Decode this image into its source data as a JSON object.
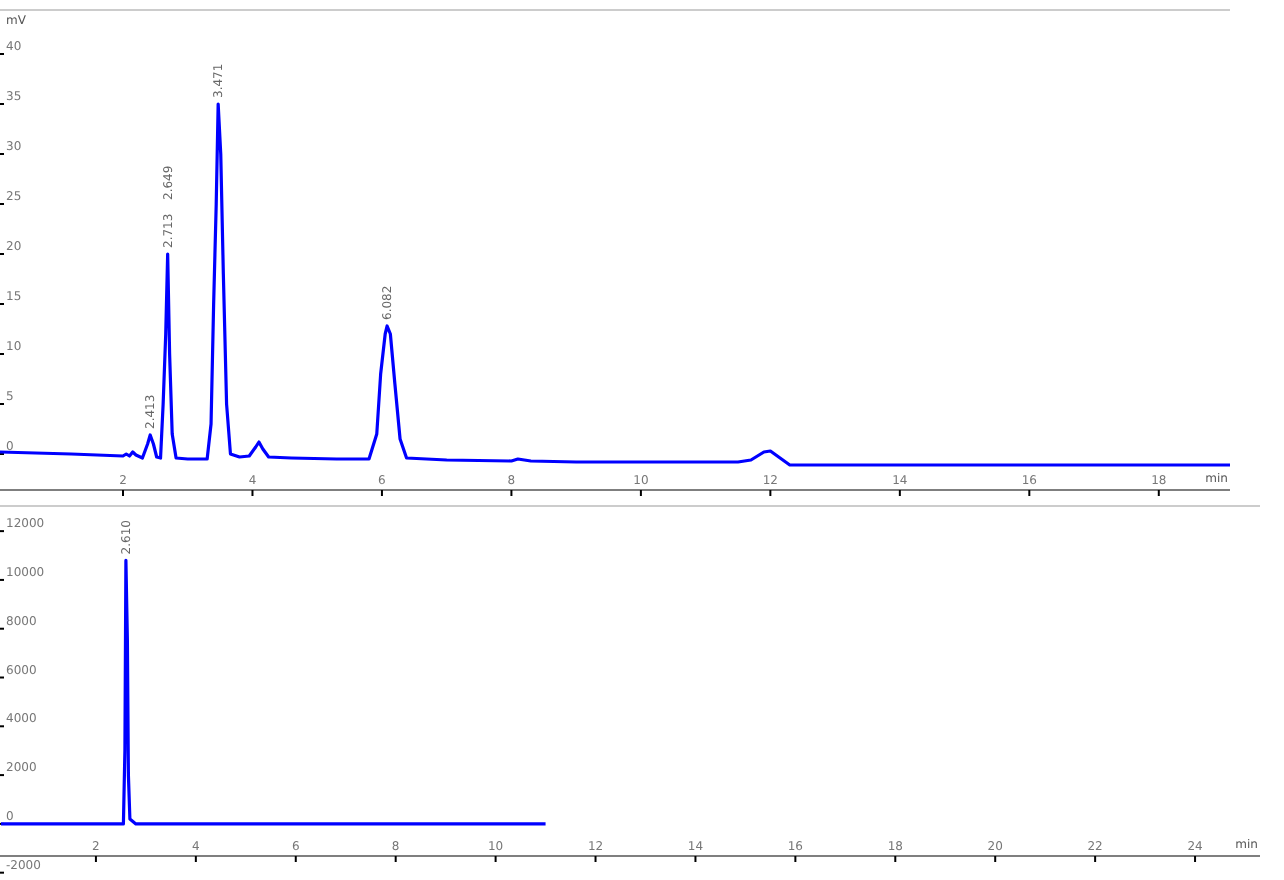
{
  "chart_data": [
    {
      "type": "line",
      "ylabel": "mV",
      "xlabel": "min",
      "xlim": [
        0.1,
        19.1
      ],
      "xticks": [
        2,
        4,
        6,
        8,
        10,
        12,
        14,
        16,
        18
      ],
      "ylim": [
        -3.6,
        44.4
      ],
      "yticks": [
        0,
        5,
        10,
        15,
        20,
        25,
        30,
        35,
        40
      ],
      "grid": false,
      "marker": "none",
      "line_style": "solid",
      "series": [
        {
          "color": "#0000ff",
          "x": [
            0.1,
            1.2,
            2.0,
            2.05,
            2.1,
            2.15,
            2.2,
            2.3,
            2.38,
            2.42,
            2.47,
            2.52,
            2.58,
            2.62,
            2.66,
            2.69,
            2.72,
            2.76,
            2.82,
            3.0,
            3.3,
            3.36,
            3.4,
            3.44,
            3.47,
            3.51,
            3.55,
            3.6,
            3.66,
            3.8,
            3.95,
            4.05,
            4.1,
            4.16,
            4.25,
            4.6,
            5.3,
            5.8,
            5.92,
            5.98,
            6.05,
            6.08,
            6.13,
            6.2,
            6.28,
            6.38,
            7.0,
            8.0,
            8.1,
            8.3,
            9.0,
            11.5,
            11.7,
            11.9,
            12.0,
            12.15,
            12.3,
            15,
            19.1
          ],
          "values": [
            0.2,
            0.0,
            -0.2,
            0.0,
            -0.2,
            0.2,
            -0.1,
            -0.4,
            1.0,
            1.9,
            1.0,
            -0.3,
            -0.4,
            5,
            12,
            20,
            10,
            2,
            -0.4,
            -0.5,
            -0.5,
            3,
            15,
            25,
            35,
            30,
            18,
            5,
            0,
            -0.3,
            -0.2,
            0.7,
            1.2,
            0.5,
            -0.3,
            -0.4,
            -0.5,
            -0.5,
            2,
            8,
            12,
            12.8,
            12,
            7,
            1.5,
            -0.4,
            -0.6,
            -0.7,
            -0.5,
            -0.7,
            -0.8,
            -0.8,
            -0.6,
            0.2,
            0.3,
            -0.4,
            -1.1,
            -1.1,
            -1.1
          ]
        }
      ],
      "annotations": [
        {
          "text": "2.413",
          "x": 2.42,
          "y": 1.9
        },
        {
          "text": "2.713",
          "x": 2.69,
          "y": 20
        },
        "2.649",
        {
          "text": "3.471",
          "x": 3.47,
          "y": 35
        },
        {
          "text": "6.082",
          "x": 6.08,
          "y": 12.8
        }
      ]
    },
    {
      "type": "line",
      "xlabel": "min",
      "xlim": [
        0.08,
        25.3
      ],
      "xticks": [
        2,
        4,
        6,
        8,
        10,
        12,
        14,
        16,
        18,
        20,
        22,
        24
      ],
      "ylim": [
        -2300,
        13030
      ],
      "yticks": [
        -2000,
        0,
        2000,
        4000,
        6000,
        8000,
        10000,
        12000
      ],
      "grid": false,
      "marker": "none",
      "line_style": "solid",
      "series": [
        {
          "color": "#0000ff",
          "x": [
            0.1,
            2.55,
            2.58,
            2.6,
            2.63,
            2.65,
            2.68,
            2.8,
            2.9,
            11
          ],
          "values": [
            0,
            0,
            3000,
            10800,
            7500,
            2000,
            200,
            0,
            0,
            0
          ]
        }
      ],
      "annotations": [
        {
          "text": "2.610",
          "x": 2.6,
          "y": 10800
        }
      ]
    }
  ]
}
